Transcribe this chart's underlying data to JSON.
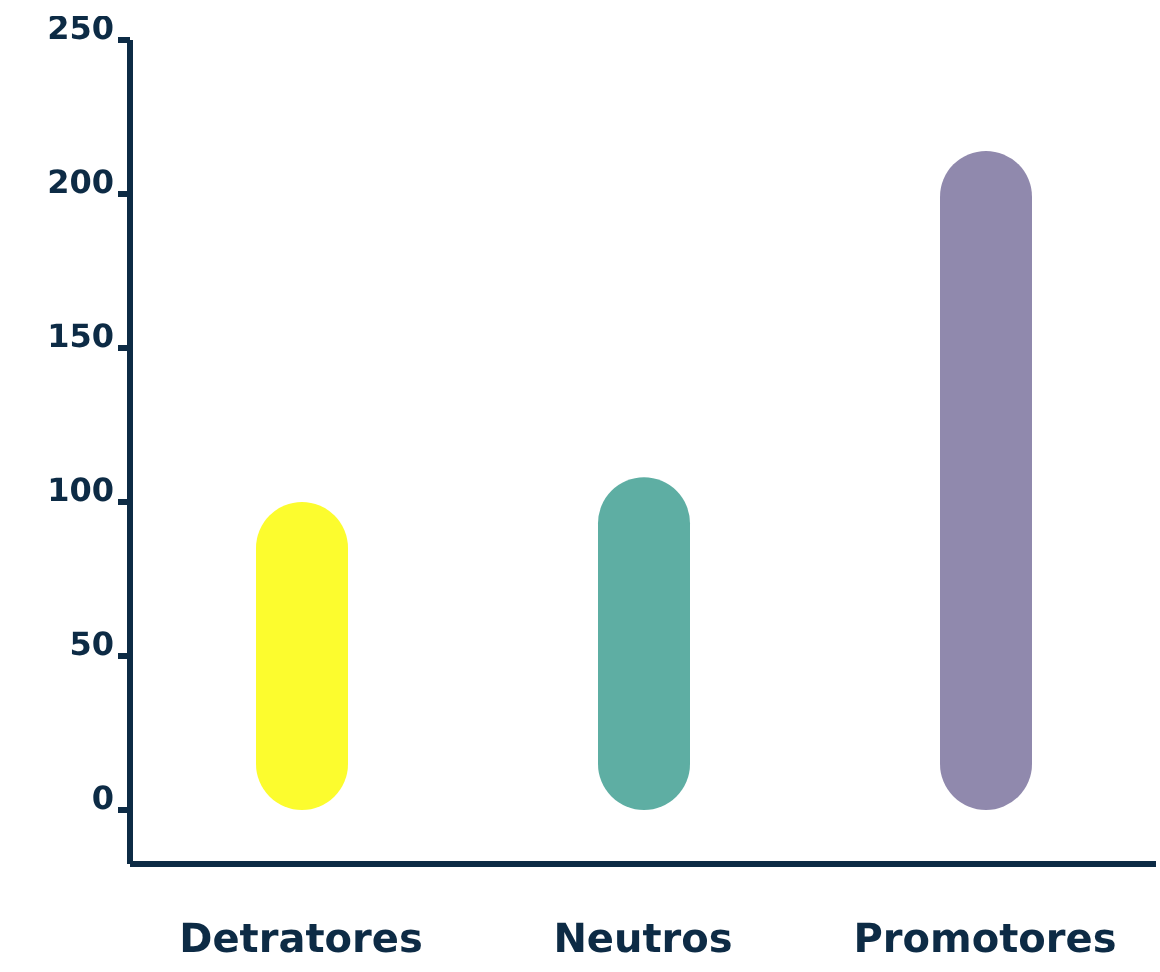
{
  "chart_data": {
    "type": "bar",
    "categories": [
      "Detratores",
      "Neutros",
      "Promotores"
    ],
    "values": [
      100,
      108,
      214
    ],
    "colors": [
      "#fcfc2e",
      "#5eaea3",
      "#9089ad"
    ],
    "ylim": [
      0,
      250
    ],
    "yticks": [
      0,
      50,
      100,
      150,
      200,
      250
    ],
    "grid": false,
    "legend": false
  }
}
